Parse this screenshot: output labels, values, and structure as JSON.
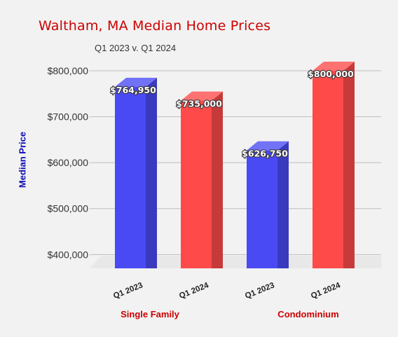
{
  "chart_data": {
    "type": "bar",
    "title": "Waltham, MA Median Home Prices",
    "subtitle": "Q1 2023 v. Q1 2024",
    "ylabel": "Median Price",
    "xlabel": "",
    "ylim": [
      370000,
      800000
    ],
    "yticks": [
      400000,
      500000,
      600000,
      700000,
      800000
    ],
    "ytick_labels": [
      "$400,000",
      "$500,000",
      "$600,000",
      "$700,000",
      "$800,000"
    ],
    "grid": true,
    "groups": [
      "Single Family",
      "Condominium"
    ],
    "categories": [
      "Q1 2023",
      "Q1 2024",
      "Q1 2023",
      "Q1 2024"
    ],
    "values": [
      764950,
      735000,
      626750,
      800000
    ],
    "value_labels": [
      "$764,950",
      "$735,000",
      "$626,750",
      "$800,000"
    ],
    "bar_colors": [
      "#4a4af5",
      "#ff4a4a",
      "#4a4af5",
      "#ff4a4a"
    ]
  }
}
